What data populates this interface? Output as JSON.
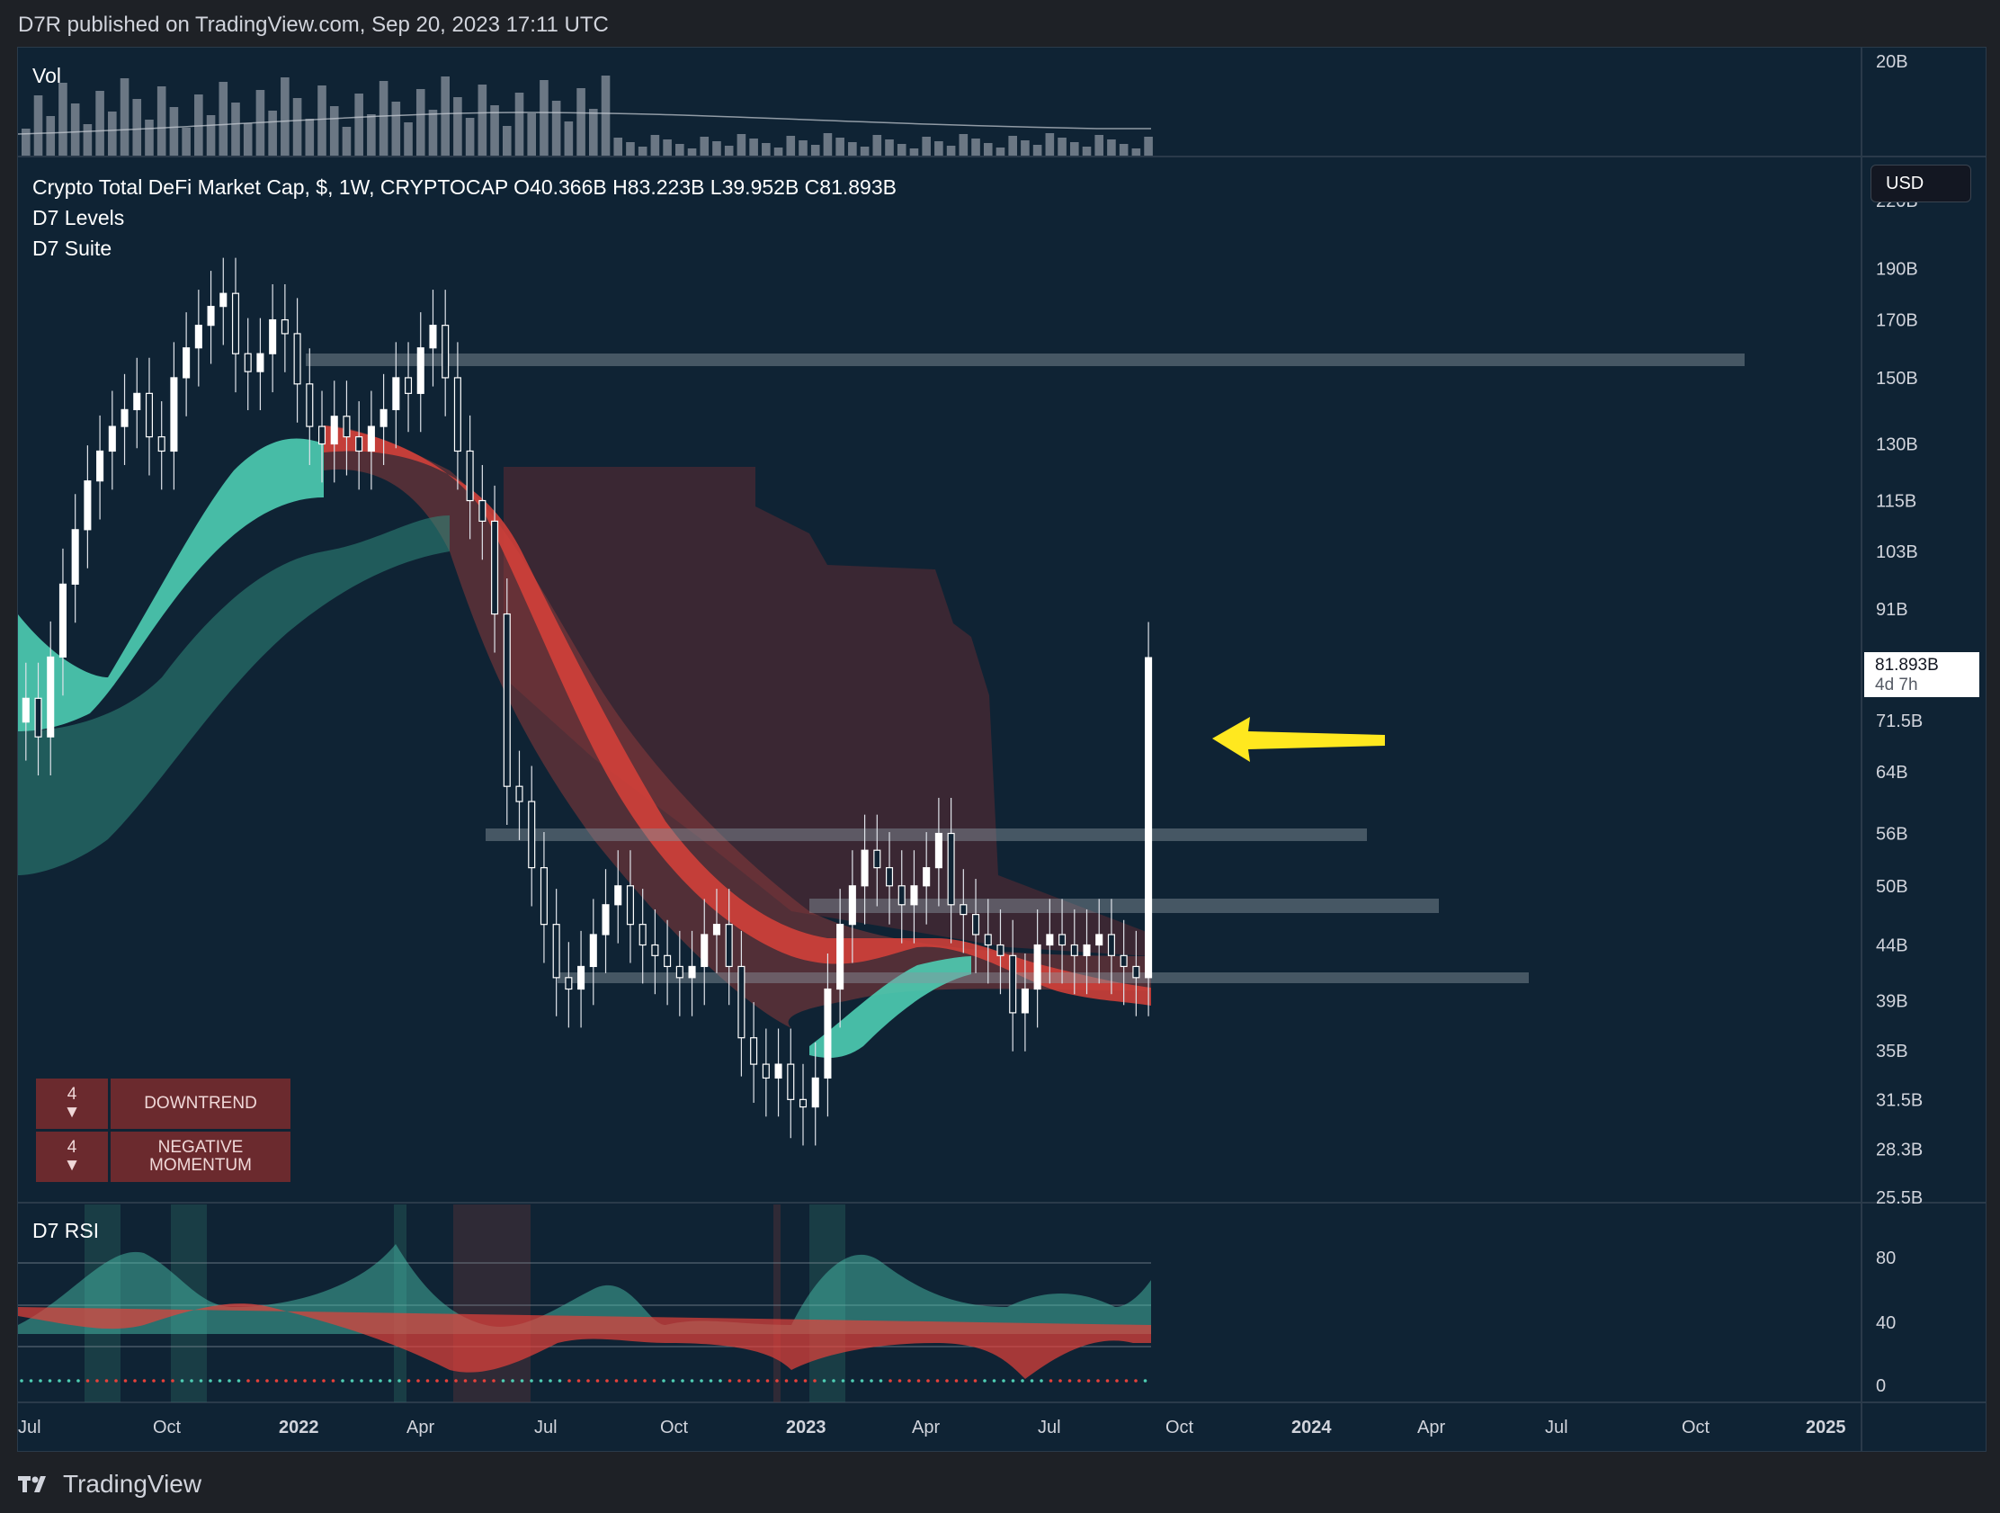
{
  "header": {
    "published": "D7R published on TradingView.com, Sep 20, 2023 17:11 UTC"
  },
  "footer": {
    "brand": "TradingView"
  },
  "panes": {
    "volume": {
      "label": "Vol",
      "scale_label": "20B"
    },
    "main": {
      "legend": [
        "Crypto Total DeFi Market Cap, $, 1W, CRYPTOCAP  O40.366B  H83.223B  L39.952B  C81.893B",
        "D7 Levels",
        "D7 Suite"
      ],
      "currency": "USD",
      "last_price": "81.893B",
      "countdown": "4d 7h",
      "price_axis": [
        "220B",
        "190B",
        "170B",
        "150B",
        "130B",
        "115B",
        "103B",
        "91B",
        "71.5B",
        "64B",
        "56B",
        "50B",
        "44B",
        "39B",
        "35B",
        "31.5B",
        "28.3B",
        "25.5B"
      ],
      "status": [
        {
          "count": "4",
          "arrow": "▼",
          "text": "DOWNTREND"
        },
        {
          "count": "4",
          "arrow": "▼",
          "text": "NEGATIVE MOMENTUM"
        }
      ]
    },
    "rsi": {
      "label": "D7 RSI",
      "levels": [
        "80",
        "40",
        "0"
      ]
    }
  },
  "time_axis": [
    "Jul",
    "Oct",
    "2022",
    "Apr",
    "Jul",
    "Oct",
    "2023",
    "Apr",
    "Jul",
    "Oct",
    "2024",
    "Apr",
    "Jul",
    "Oct",
    "2025"
  ],
  "colors": {
    "background": "#0f2334",
    "bull": "#4ecdb3",
    "bear": "#e5413a",
    "cloud_bear": "#6b2a30",
    "arrow": "#ffe81f",
    "level_band": "#8a96a0"
  },
  "chart_data": {
    "type": "candlestick",
    "title": "Crypto Total DeFi Market Cap, $, 1W, CRYPTOCAP",
    "ohlc_last": {
      "open": 40.366,
      "high": 83.223,
      "low": 39.952,
      "close": 81.893,
      "unit": "B USD"
    },
    "closes_approx_B": [
      75,
      69,
      82,
      96,
      108,
      120,
      128,
      135,
      140,
      145,
      132,
      128,
      150,
      160,
      168,
      175,
      180,
      158,
      152,
      158,
      170,
      165,
      148,
      135,
      130,
      138,
      132,
      128,
      135,
      140,
      150,
      145,
      160,
      168,
      150,
      128,
      115,
      110,
      90,
      62,
      60,
      52,
      46,
      41,
      40,
      42,
      45,
      48,
      50,
      46,
      44,
      43,
      42,
      41,
      42,
      45,
      46,
      42,
      36,
      34,
      33,
      34,
      31.5,
      31,
      33,
      40,
      46,
      50,
      54,
      52,
      50,
      48,
      50,
      52,
      56,
      48,
      47,
      45,
      44,
      43,
      38,
      40,
      44,
      45,
      44,
      43,
      44,
      45,
      43,
      42,
      41,
      81.893
    ],
    "levels_B": [
      {
        "price": 160,
        "note": "resistance band"
      },
      {
        "price": 55.5,
        "note": "band"
      },
      {
        "price": 47.5,
        "note": "band"
      },
      {
        "price": 42,
        "note": "support band"
      }
    ],
    "ylim_B": [
      25.5,
      220
    ],
    "log_scale": true,
    "annotations": [
      "yellow arrow pointing to latest candle"
    ]
  }
}
